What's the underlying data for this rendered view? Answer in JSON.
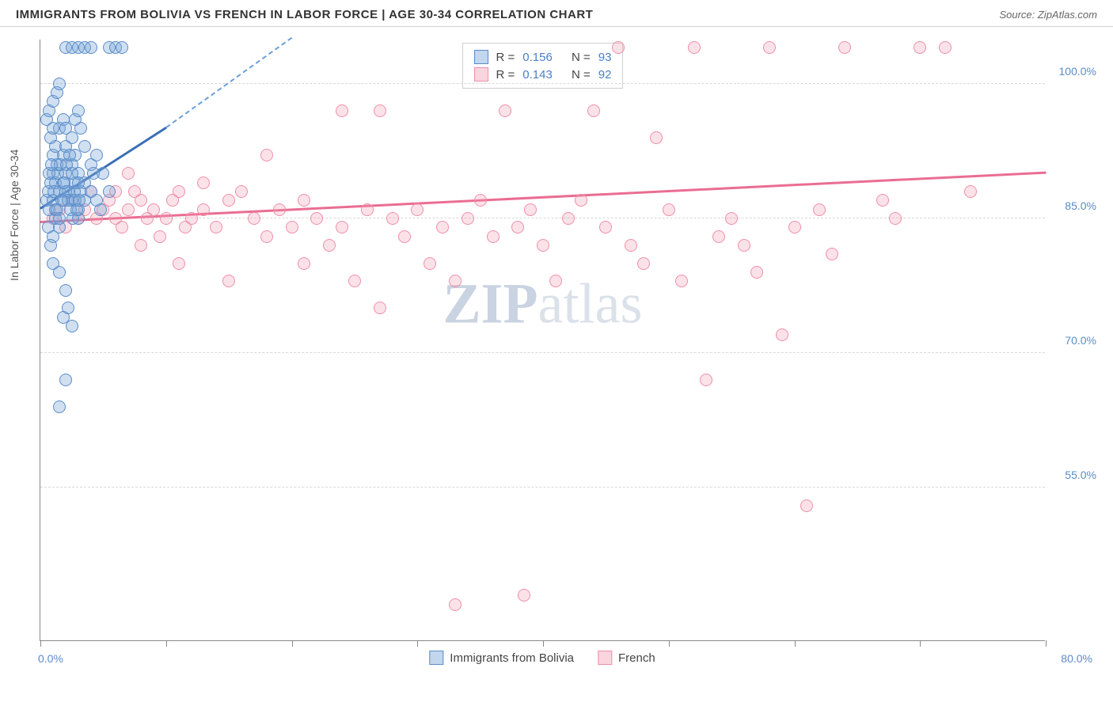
{
  "header": {
    "title": "IMMIGRANTS FROM BOLIVIA VS FRENCH IN LABOR FORCE | AGE 30-34 CORRELATION CHART",
    "source_prefix": "Source: ",
    "source_name": "ZipAtlas.com"
  },
  "watermark": {
    "part1": "ZIP",
    "part2": "atlas"
  },
  "chart": {
    "type": "scatter",
    "y_axis_title": "In Labor Force | Age 30-34",
    "background_color": "#ffffff",
    "grid_color": "#d8d8d8",
    "xlim": [
      0,
      80
    ],
    "ylim": [
      38,
      105
    ],
    "x_ticks": [
      0,
      10,
      20,
      30,
      40,
      50,
      60,
      70,
      80
    ],
    "x_min_label": "0.0%",
    "x_max_label": "80.0%",
    "y_ticks": [
      {
        "v": 100,
        "label": "100.0%"
      },
      {
        "v": 85,
        "label": "85.0%"
      },
      {
        "v": 70,
        "label": "70.0%"
      },
      {
        "v": 55,
        "label": "55.0%"
      }
    ],
    "series_a": {
      "name": "Immigrants from Bolivia",
      "marker_color": "#78a5d7",
      "marker_border": "#5b8cc9",
      "marker_opacity": 0.35,
      "marker_size_px": 16,
      "R": "0.156",
      "N": "93",
      "trend_solid": {
        "x1": 0,
        "y1": 86,
        "x2": 10,
        "y2": 95,
        "color": "#3a6fb7",
        "width": 3
      },
      "trend_dashed": {
        "x1": 10,
        "y1": 95,
        "x2": 20,
        "y2": 105,
        "color": "#6a9fd8",
        "width": 2
      },
      "points": [
        [
          0.5,
          87
        ],
        [
          0.6,
          88
        ],
        [
          0.7,
          86
        ],
        [
          0.8,
          89
        ],
        [
          1.0,
          87
        ],
        [
          1.2,
          85
        ],
        [
          1.0,
          90
        ],
        [
          1.3,
          91
        ],
        [
          1.5,
          88
        ],
        [
          1.8,
          87
        ],
        [
          1.0,
          92
        ],
        [
          1.2,
          93
        ],
        [
          0.8,
          94
        ],
        [
          1.5,
          95
        ],
        [
          1.8,
          96
        ],
        [
          2.0,
          90
        ],
        [
          2.2,
          88
        ],
        [
          2.5,
          87
        ],
        [
          2.8,
          89
        ],
        [
          3.0,
          86
        ],
        [
          0.5,
          96
        ],
        [
          0.7,
          97
        ],
        [
          1.0,
          98
        ],
        [
          1.3,
          99
        ],
        [
          1.5,
          100
        ],
        [
          1.8,
          92
        ],
        [
          2.0,
          93
        ],
        [
          1.2,
          86
        ],
        [
          1.5,
          84
        ],
        [
          1.0,
          83
        ],
        [
          2.5,
          91
        ],
        [
          2.8,
          92
        ],
        [
          3.0,
          90
        ],
        [
          3.2,
          88
        ],
        [
          3.5,
          87
        ],
        [
          0.6,
          84
        ],
        [
          0.8,
          82
        ],
        [
          1.0,
          80
        ],
        [
          1.5,
          79
        ],
        [
          2.0,
          77
        ],
        [
          2.2,
          75
        ],
        [
          1.8,
          74
        ],
        [
          2.5,
          73
        ],
        [
          3.0,
          85
        ],
        [
          3.5,
          89
        ],
        [
          4.0,
          88
        ],
        [
          4.5,
          87
        ],
        [
          4.8,
          86
        ],
        [
          5.0,
          90
        ],
        [
          5.5,
          88
        ],
        [
          2.0,
          104
        ],
        [
          2.5,
          104
        ],
        [
          3.0,
          104
        ],
        [
          3.5,
          104
        ],
        [
          4.0,
          104
        ],
        [
          5.5,
          104
        ],
        [
          6.0,
          104
        ],
        [
          6.5,
          104
        ],
        [
          2.0,
          67
        ],
        [
          1.5,
          64
        ],
        [
          1.0,
          95
        ],
        [
          2.0,
          95
        ],
        [
          2.5,
          94
        ],
        [
          2.8,
          96
        ],
        [
          3.0,
          97
        ],
        [
          3.2,
          95
        ],
        [
          3.5,
          93
        ],
        [
          4.0,
          91
        ],
        [
          4.2,
          90
        ],
        [
          4.5,
          92
        ],
        [
          1.2,
          89
        ],
        [
          1.4,
          90
        ],
        [
          1.6,
          91
        ],
        [
          1.8,
          89
        ],
        [
          2.0,
          88
        ],
        [
          2.2,
          87
        ],
        [
          2.4,
          86
        ],
        [
          2.6,
          85
        ],
        [
          2.8,
          87
        ],
        [
          3.0,
          89
        ],
        [
          0.7,
          90
        ],
        [
          0.9,
          91
        ],
        [
          1.1,
          88
        ],
        [
          1.3,
          86
        ],
        [
          1.5,
          85
        ],
        [
          1.7,
          87
        ],
        [
          1.9,
          89
        ],
        [
          2.1,
          91
        ],
        [
          2.3,
          92
        ],
        [
          2.5,
          90
        ],
        [
          2.7,
          88
        ],
        [
          2.9,
          86
        ],
        [
          3.1,
          87
        ]
      ]
    },
    "series_b": {
      "name": "French",
      "marker_color": "#f096af",
      "marker_border": "#ef8fa7",
      "marker_opacity": 0.28,
      "marker_size_px": 16,
      "R": "0.143",
      "N": "92",
      "trend_solid": {
        "x1": 0,
        "y1": 84.5,
        "x2": 80,
        "y2": 90,
        "color": "#ea6d92",
        "width": 3
      },
      "points": [
        [
          1.0,
          85
        ],
        [
          1.5,
          86
        ],
        [
          2.0,
          84
        ],
        [
          2.5,
          87
        ],
        [
          3.0,
          85
        ],
        [
          3.5,
          86
        ],
        [
          4.0,
          88
        ],
        [
          4.5,
          85
        ],
        [
          5.0,
          86
        ],
        [
          5.5,
          87
        ],
        [
          6.0,
          85
        ],
        [
          6.5,
          84
        ],
        [
          7.0,
          86
        ],
        [
          7.5,
          88
        ],
        [
          8.0,
          87
        ],
        [
          8.5,
          85
        ],
        [
          9.0,
          86
        ],
        [
          9.5,
          83
        ],
        [
          10.0,
          85
        ],
        [
          10.5,
          87
        ],
        [
          11.0,
          88
        ],
        [
          11.5,
          84
        ],
        [
          12.0,
          85
        ],
        [
          13.0,
          86
        ],
        [
          14.0,
          84
        ],
        [
          15.0,
          87
        ],
        [
          16.0,
          88
        ],
        [
          17.0,
          85
        ],
        [
          18.0,
          83
        ],
        [
          19.0,
          86
        ],
        [
          20.0,
          84
        ],
        [
          21.0,
          87
        ],
        [
          22.0,
          85
        ],
        [
          23.0,
          82
        ],
        [
          24.0,
          84
        ],
        [
          25.0,
          78
        ],
        [
          26.0,
          86
        ],
        [
          27.0,
          97
        ],
        [
          28.0,
          85
        ],
        [
          29.0,
          83
        ],
        [
          30.0,
          86
        ],
        [
          31.0,
          80
        ],
        [
          32.0,
          84
        ],
        [
          33.0,
          78
        ],
        [
          33.0,
          42
        ],
        [
          34.0,
          85
        ],
        [
          35.0,
          87
        ],
        [
          36.0,
          83
        ],
        [
          37.0,
          97
        ],
        [
          38.0,
          84
        ],
        [
          38.5,
          43
        ],
        [
          39.0,
          86
        ],
        [
          40.0,
          82
        ],
        [
          41.0,
          78
        ],
        [
          42.0,
          85
        ],
        [
          43.0,
          87
        ],
        [
          44.0,
          97
        ],
        [
          45.0,
          84
        ],
        [
          46.0,
          104
        ],
        [
          47.0,
          82
        ],
        [
          48.0,
          80
        ],
        [
          49.0,
          94
        ],
        [
          50.0,
          86
        ],
        [
          51.0,
          78
        ],
        [
          52.0,
          104
        ],
        [
          53.0,
          67
        ],
        [
          54.0,
          83
        ],
        [
          55.0,
          85
        ],
        [
          56.0,
          82
        ],
        [
          57.0,
          79
        ],
        [
          58.0,
          104
        ],
        [
          59.0,
          72
        ],
        [
          60.0,
          84
        ],
        [
          61.0,
          53
        ],
        [
          62.0,
          86
        ],
        [
          63.0,
          81
        ],
        [
          64.0,
          104
        ],
        [
          67.0,
          87
        ],
        [
          68.0,
          85
        ],
        [
          70.0,
          104
        ],
        [
          72.0,
          104
        ],
        [
          74.0,
          88
        ],
        [
          6.0,
          88
        ],
        [
          7.0,
          90
        ],
        [
          8.0,
          82
        ],
        [
          11.0,
          80
        ],
        [
          13.0,
          89
        ],
        [
          15.0,
          78
        ],
        [
          18.0,
          92
        ],
        [
          21.0,
          80
        ],
        [
          24.0,
          97
        ],
        [
          27.0,
          75
        ]
      ]
    },
    "legend_stats": {
      "r_label": "R =",
      "n_label": "N ="
    },
    "bottom_legend": {
      "a_label": "Immigrants from Bolivia",
      "b_label": "French"
    }
  }
}
